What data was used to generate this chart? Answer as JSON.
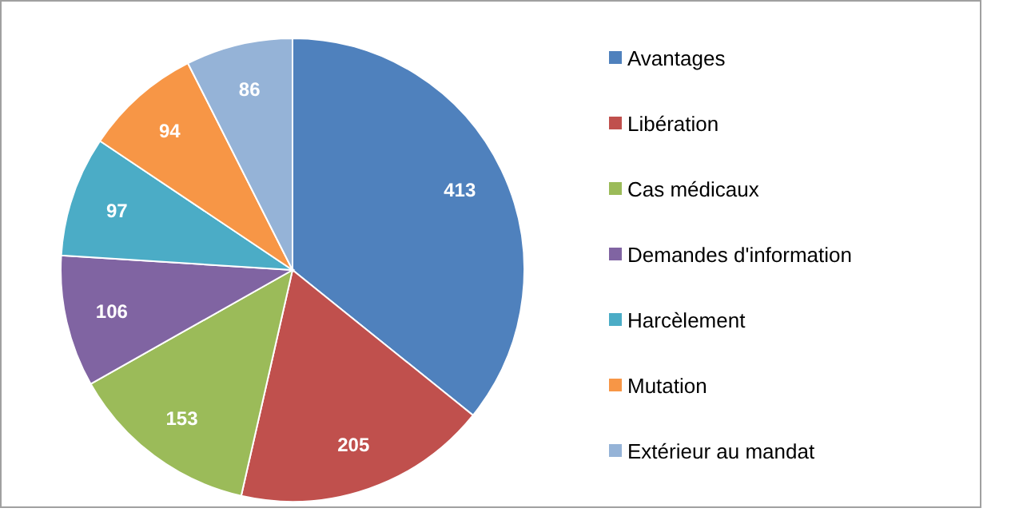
{
  "chart_data": {
    "type": "pie",
    "categories": [
      "Avantages",
      "Libération",
      "Cas médicaux",
      "Demandes d'information",
      "Harcèlement",
      "Mutation",
      "Extérieur au mandat"
    ],
    "values": [
      413,
      205,
      153,
      106,
      97,
      94,
      86
    ],
    "colors": [
      "#4f81bd",
      "#c0504d",
      "#9bbb59",
      "#8064a2",
      "#4bacc6",
      "#f79646",
      "#95b3d7"
    ],
    "data_labels": true,
    "legend": "right"
  }
}
